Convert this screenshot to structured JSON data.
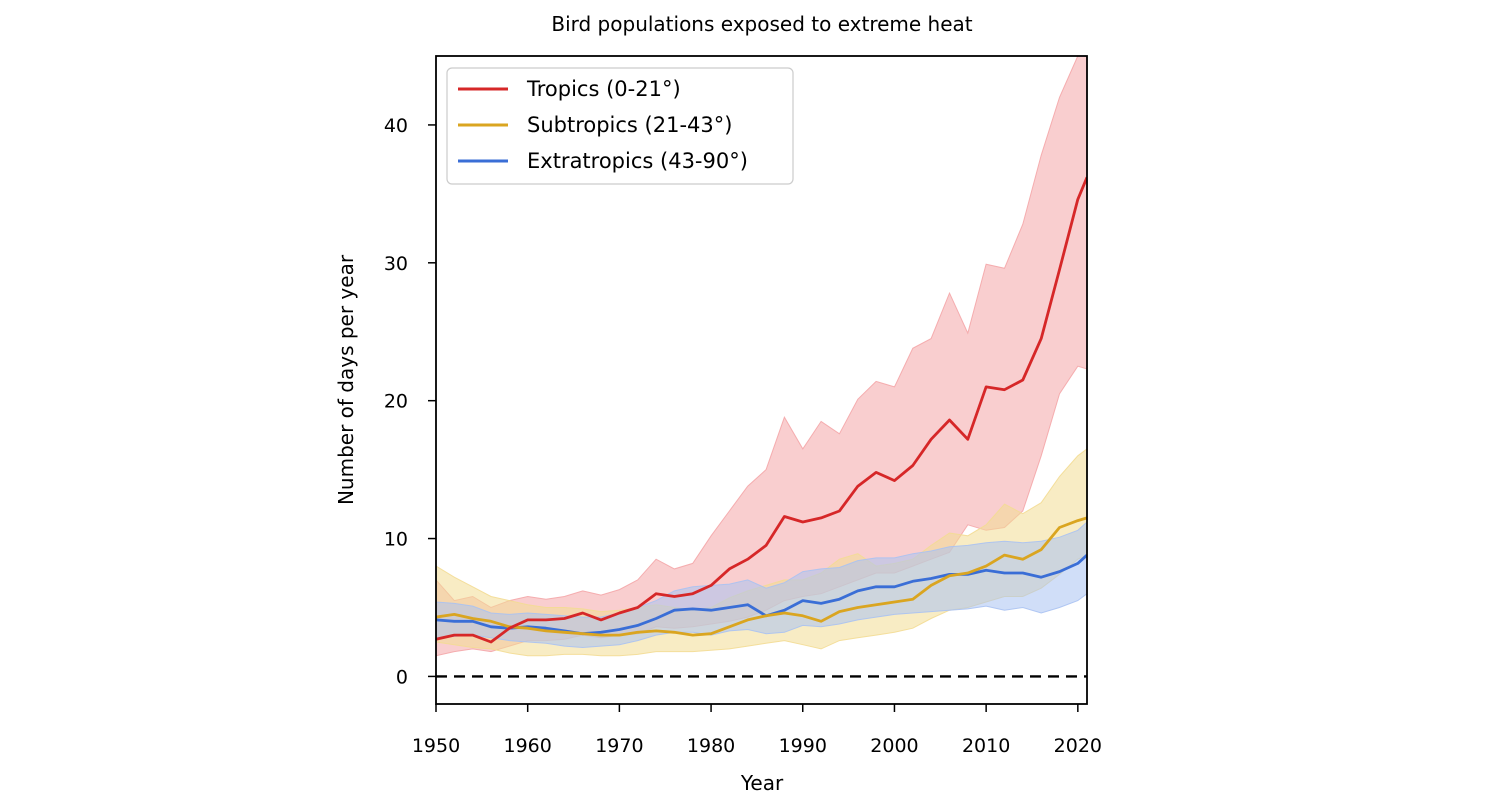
{
  "chart_data": {
    "type": "line",
    "title": "Bird populations exposed to extreme heat",
    "xlabel": "Year",
    "ylabel": "Number of days per year",
    "xlim": [
      1950,
      2021
    ],
    "ylim": [
      -2,
      45
    ],
    "xticks": [
      1950,
      1960,
      1970,
      1980,
      1990,
      2000,
      2010,
      2020
    ],
    "yticks": [
      0,
      10,
      20,
      30,
      40
    ],
    "grid": false,
    "legend_position": "top-left",
    "reference_line": {
      "y": 0,
      "style": "dashed",
      "color": "#000000"
    },
    "series": [
      {
        "name": "Tropics (0-21°)",
        "color": "#d62728",
        "band_color": "#f4a6a8",
        "x": [
          1950,
          1952,
          1954,
          1956,
          1958,
          1960,
          1962,
          1964,
          1966,
          1968,
          1970,
          1972,
          1974,
          1976,
          1978,
          1980,
          1982,
          1984,
          1986,
          1988,
          1990,
          1992,
          1994,
          1996,
          1998,
          2000,
          2002,
          2004,
          2006,
          2008,
          2010,
          2012,
          2014,
          2016,
          2018,
          2020,
          2021
        ],
        "values": [
          2.7,
          3.0,
          3.0,
          2.5,
          3.5,
          4.1,
          4.1,
          4.2,
          4.6,
          4.1,
          4.6,
          5.0,
          6.0,
          5.8,
          6.0,
          6.6,
          7.8,
          8.5,
          9.5,
          11.6,
          11.2,
          11.5,
          12.0,
          13.8,
          14.8,
          14.2,
          15.3,
          17.2,
          18.6,
          17.2,
          21.0,
          20.8,
          21.5,
          24.5,
          29.5,
          34.6,
          36.2
        ],
        "lower": [
          1.5,
          1.8,
          2.0,
          1.8,
          2.2,
          2.6,
          2.6,
          2.7,
          3.0,
          2.8,
          3.0,
          3.1,
          3.6,
          3.5,
          3.6,
          3.8,
          4.0,
          4.3,
          4.8,
          5.5,
          5.8,
          6.0,
          6.5,
          7.0,
          7.5,
          7.5,
          8.0,
          8.5,
          9.0,
          11.0,
          10.6,
          10.8,
          12.0,
          16.0,
          20.5,
          22.5,
          22.3
        ],
        "upper": [
          7.0,
          5.5,
          5.8,
          5.0,
          5.5,
          5.8,
          5.6,
          5.8,
          6.2,
          5.9,
          6.3,
          7.0,
          8.5,
          7.8,
          8.2,
          10.2,
          12.0,
          13.8,
          15.0,
          18.8,
          16.5,
          18.5,
          17.6,
          20.1,
          21.4,
          21.0,
          23.8,
          24.5,
          27.8,
          24.9,
          29.9,
          29.6,
          32.8,
          37.8,
          42.0,
          45.0,
          45.0
        ]
      },
      {
        "name": "Subtropics (21-43°)",
        "color": "#daa520",
        "band_color": "#f3dc94",
        "x": [
          1950,
          1952,
          1954,
          1956,
          1958,
          1960,
          1962,
          1964,
          1966,
          1968,
          1970,
          1972,
          1974,
          1976,
          1978,
          1980,
          1982,
          1984,
          1986,
          1988,
          1990,
          1992,
          1994,
          1996,
          1998,
          2000,
          2002,
          2004,
          2006,
          2008,
          2010,
          2012,
          2014,
          2016,
          2018,
          2020,
          2021
        ],
        "values": [
          4.3,
          4.5,
          4.2,
          4.0,
          3.6,
          3.5,
          3.3,
          3.2,
          3.1,
          3.0,
          3.0,
          3.2,
          3.3,
          3.2,
          3.0,
          3.1,
          3.6,
          4.1,
          4.4,
          4.6,
          4.4,
          4.0,
          4.7,
          5.0,
          5.2,
          5.4,
          5.6,
          6.6,
          7.3,
          7.5,
          8.0,
          8.8,
          8.5,
          9.2,
          10.8,
          11.3,
          11.5
        ],
        "lower": [
          2.5,
          2.3,
          2.1,
          2.0,
          1.7,
          1.5,
          1.5,
          1.6,
          1.6,
          1.5,
          1.5,
          1.6,
          1.8,
          1.8,
          1.8,
          1.9,
          2.0,
          2.2,
          2.4,
          2.6,
          2.3,
          2.0,
          2.6,
          2.8,
          3.0,
          3.2,
          3.5,
          4.2,
          4.8,
          5.0,
          5.4,
          5.8,
          5.8,
          6.4,
          7.4,
          8.5,
          8.8
        ],
        "upper": [
          8.0,
          7.2,
          6.5,
          5.8,
          5.5,
          5.2,
          5.0,
          5.0,
          4.9,
          4.7,
          4.8,
          5.0,
          5.2,
          5.0,
          4.8,
          5.0,
          5.7,
          6.2,
          6.6,
          7.0,
          7.0,
          7.5,
          8.5,
          8.9,
          8.0,
          8.2,
          8.5,
          9.5,
          10.4,
          10.2,
          11.0,
          12.5,
          11.8,
          12.6,
          14.5,
          16.0,
          16.5
        ]
      },
      {
        "name": "Extratropics (43-90°)",
        "color": "#3a6ed6",
        "band_color": "#aac2f2",
        "x": [
          1950,
          1952,
          1954,
          1956,
          1958,
          1960,
          1962,
          1964,
          1966,
          1968,
          1970,
          1972,
          1974,
          1976,
          1978,
          1980,
          1982,
          1984,
          1986,
          1988,
          1990,
          1992,
          1994,
          1996,
          1998,
          2000,
          2002,
          2004,
          2006,
          2008,
          2010,
          2012,
          2014,
          2016,
          2018,
          2020,
          2021
        ],
        "values": [
          4.1,
          4.0,
          4.0,
          3.6,
          3.5,
          3.6,
          3.5,
          3.3,
          3.1,
          3.2,
          3.4,
          3.7,
          4.2,
          4.8,
          4.9,
          4.8,
          5.0,
          5.2,
          4.4,
          4.8,
          5.5,
          5.3,
          5.6,
          6.2,
          6.5,
          6.5,
          6.9,
          7.1,
          7.4,
          7.4,
          7.7,
          7.5,
          7.5,
          7.2,
          7.6,
          8.2,
          8.8
        ],
        "lower": [
          2.8,
          2.9,
          3.0,
          2.8,
          2.6,
          2.5,
          2.4,
          2.2,
          2.1,
          2.2,
          2.3,
          2.6,
          3.0,
          3.2,
          3.2,
          3.0,
          3.3,
          3.4,
          3.1,
          3.2,
          3.7,
          3.6,
          3.8,
          4.1,
          4.3,
          4.5,
          4.6,
          4.7,
          4.8,
          4.9,
          5.1,
          4.8,
          5.0,
          4.6,
          5.0,
          5.5,
          6.0
        ],
        "upper": [
          5.4,
          5.3,
          5.1,
          4.6,
          4.5,
          4.6,
          4.5,
          4.4,
          4.3,
          4.3,
          4.6,
          5.0,
          5.5,
          6.2,
          6.5,
          6.6,
          6.7,
          7.0,
          6.4,
          6.8,
          7.6,
          7.8,
          7.9,
          8.4,
          8.6,
          8.6,
          8.9,
          9.1,
          9.4,
          9.5,
          9.7,
          9.8,
          9.7,
          9.8,
          10.1,
          10.6,
          11.2
        ]
      }
    ]
  }
}
